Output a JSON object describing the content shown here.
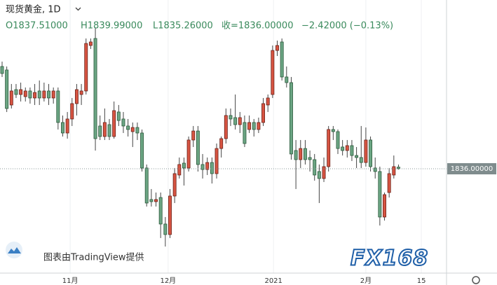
{
  "chart_data": {
    "type": "candlestick",
    "title": "现货黄金, 1D",
    "header": {
      "open": "O1837.51000",
      "high": "H1839.99000",
      "low": "L1835.26000",
      "close": "收=1836.00000",
      "change": "−2.42000 (−0.13%)"
    },
    "open": [
      1932.4,
      1929.1,
      1896.1,
      1910.6,
      1906.0,
      1904.0,
      1909.3,
      1902.7,
      1909.3,
      1902.7,
      1909.3,
      1902.7,
      1909.3,
      1879.6,
      1869.7,
      1882.9,
      1897.4,
      1906.0,
      1909.3,
      1952.2,
      1958.8,
      1876.3,
      1866.4,
      1877.6,
      1866.4,
      1889.5,
      1882.9,
      1876.3,
      1871.0,
      1874.9,
      1869.7,
      1836.7,
      1807.0,
      1805.0,
      1808.9,
      1783.9,
      1774.0,
      1810.3,
      1830.1,
      1841.3,
      1836.7,
      1863.1,
      1871.6,
      1840.0,
      1835.3,
      1841.9,
      1831.4,
      1855.1,
      1864.4,
      1886.2,
      1884.2,
      1877.6,
      1879.6,
      1873.0,
      1879.6,
      1873.0,
      1879.6,
      1896.1,
      1906.0,
      1947.5,
      1955.5,
      1922.5,
      1917.2,
      1853.2,
      1844.6,
      1855.1,
      1846.6,
      1844.6,
      1833.4,
      1826.8,
      1838.0,
      1873.0,
      1871.0,
      1856.5,
      1853.2,
      1857.8,
      1848.5,
      1846.6,
      1841.9,
      1863.1,
      1836.7,
      1833.4,
      1790.5,
      1813.6,
      1830.1,
      1837.51
    ],
    "high": [
      1937.0,
      1932.4,
      1915.9,
      1915.9,
      1917.2,
      1912.6,
      1912.6,
      1915.9,
      1919.2,
      1917.2,
      1915.9,
      1912.6,
      1912.6,
      1886.2,
      1889.5,
      1902.7,
      1915.9,
      1915.9,
      1958.8,
      1958.8,
      1968.7,
      1886.2,
      1892.8,
      1882.9,
      1899.4,
      1896.1,
      1889.5,
      1882.9,
      1879.6,
      1879.6,
      1873.0,
      1840.0,
      1816.9,
      1813.6,
      1813.6,
      1790.5,
      1816.9,
      1836.7,
      1846.6,
      1846.6,
      1866.4,
      1876.3,
      1876.3,
      1849.9,
      1846.6,
      1846.6,
      1859.8,
      1866.4,
      1892.8,
      1892.8,
      1906.0,
      1889.5,
      1886.2,
      1886.2,
      1882.9,
      1884.2,
      1902.7,
      1906.0,
      1952.2,
      1956.8,
      1958.8,
      1932.4,
      1922.5,
      1863.1,
      1863.1,
      1863.1,
      1853.2,
      1849.9,
      1840.0,
      1846.6,
      1876.3,
      1876.3,
      1873.0,
      1863.1,
      1863.1,
      1863.1,
      1856.5,
      1876.3,
      1874.9,
      1866.4,
      1846.6,
      1838.0,
      1813.6,
      1836.7,
      1848.5,
      1839.99
    ],
    "low": [
      1922.5,
      1889.5,
      1892.8,
      1902.7,
      1899.4,
      1899.4,
      1897.4,
      1896.1,
      1896.1,
      1899.4,
      1896.1,
      1897.4,
      1873.0,
      1866.4,
      1864.4,
      1876.3,
      1886.2,
      1896.1,
      1906.0,
      1948.9,
      1853.2,
      1863.1,
      1863.1,
      1863.1,
      1864.4,
      1876.3,
      1869.7,
      1866.4,
      1856.5,
      1863.1,
      1833.4,
      1800.4,
      1800.4,
      1800.4,
      1770.7,
      1762.7,
      1770.7,
      1803.7,
      1826.8,
      1820.2,
      1833.4,
      1856.5,
      1833.4,
      1826.8,
      1830.1,
      1822.1,
      1826.8,
      1846.6,
      1859.8,
      1876.3,
      1873.0,
      1869.7,
      1856.5,
      1869.7,
      1866.4,
      1869.7,
      1876.3,
      1889.5,
      1902.7,
      1942.3,
      1919.2,
      1912.6,
      1844.6,
      1816.9,
      1836.7,
      1840.0,
      1833.4,
      1824.8,
      1803.7,
      1823.5,
      1833.4,
      1863.1,
      1849.9,
      1848.5,
      1846.6,
      1843.3,
      1836.7,
      1836.7,
      1838.0,
      1833.4,
      1826.8,
      1782.5,
      1787.2,
      1808.9,
      1826.8,
      1835.26
    ],
    "close": [
      1925.8,
      1892.8,
      1909.3,
      1906.0,
      1910.6,
      1909.3,
      1902.7,
      1907.9,
      1902.7,
      1909.3,
      1902.7,
      1909.3,
      1879.6,
      1869.7,
      1882.9,
      1897.4,
      1910.6,
      1909.3,
      1954.1,
      1955.5,
      1864.4,
      1866.4,
      1879.6,
      1866.4,
      1890.8,
      1881.5,
      1876.3,
      1873.0,
      1874.9,
      1869.7,
      1836.7,
      1803.7,
      1805.0,
      1807.0,
      1783.9,
      1774.0,
      1810.3,
      1831.4,
      1840.0,
      1836.7,
      1863.1,
      1871.6,
      1840.0,
      1835.3,
      1841.9,
      1831.4,
      1855.1,
      1864.4,
      1886.2,
      1882.9,
      1877.6,
      1884.2,
      1859.8,
      1879.6,
      1873.0,
      1879.6,
      1897.4,
      1902.7,
      1947.5,
      1952.2,
      1922.5,
      1917.2,
      1849.9,
      1844.6,
      1855.1,
      1844.6,
      1844.6,
      1830.1,
      1826.8,
      1838.0,
      1873.0,
      1871.0,
      1855.1,
      1853.2,
      1857.8,
      1848.5,
      1846.6,
      1841.9,
      1863.1,
      1838.0,
      1833.4,
      1790.5,
      1811.6,
      1831.4,
      1838.0,
      1836.0
    ],
    "up_color": "#d75442",
    "down_color": "#6ba583",
    "xlim": [
      -0.45,
      95.3
    ],
    "ylim": [
      1737.66,
      1995.06
    ],
    "xticks": [
      {
        "value": 14.6,
        "label": "11月"
      },
      {
        "value": 35.6,
        "label": "12月"
      },
      {
        "value": 58.2,
        "label": "2021"
      },
      {
        "value": 78,
        "label": "2月"
      },
      {
        "value": 89.9,
        "label": "15"
      }
    ],
    "last_price": {
      "value": 1836,
      "label": "1836.00000"
    },
    "credit": "图表由TradingView提供",
    "watermark": "FX168",
    "grid": true
  }
}
